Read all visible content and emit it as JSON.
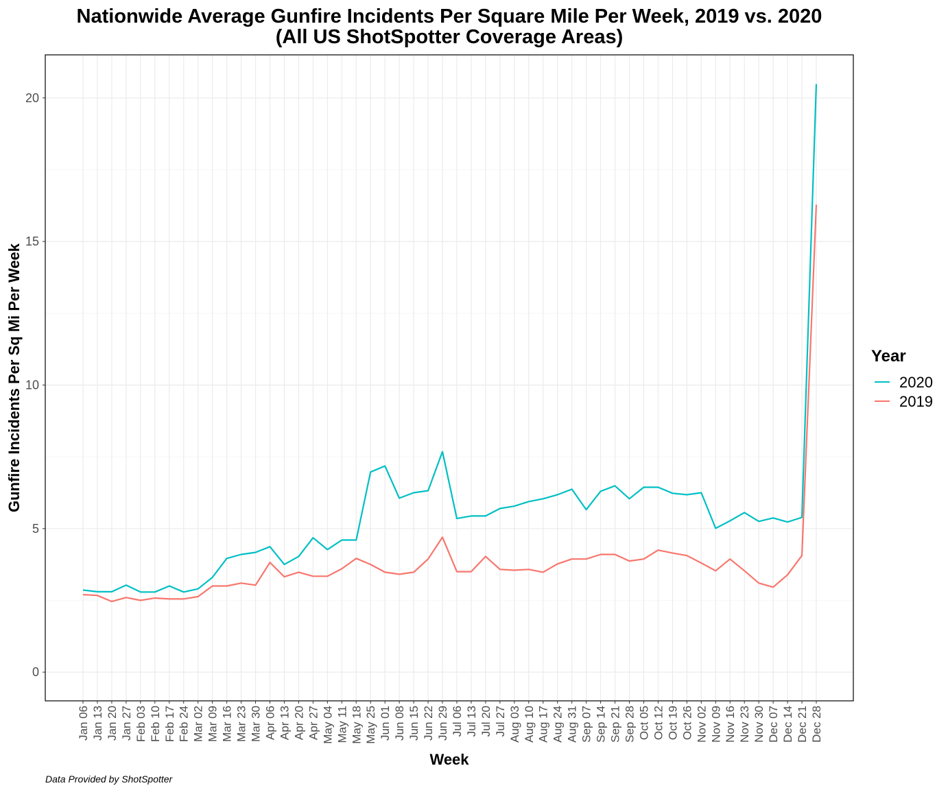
{
  "chart_data": {
    "type": "line",
    "title": "Nationwide Average Gunfire Incidents Per Square Mile Per Week, 2019 vs. 2020",
    "subtitle": "(All US ShotSpotter Coverage Areas)",
    "xlabel": "Week",
    "ylabel": "Gunfire Incidents Per Sq Mi Per Week",
    "caption": "Data Provided by ShotSpotter",
    "ylim": [
      -1,
      21.5
    ],
    "yticks": [
      "0",
      "5",
      "10",
      "15",
      "20"
    ],
    "grid": true,
    "legend": {
      "title": "Year",
      "position": "right"
    },
    "categories": [
      "Jan 06",
      "Jan 13",
      "Jan 20",
      "Jan 27",
      "Feb 03",
      "Feb 10",
      "Feb 17",
      "Feb 24",
      "Mar 02",
      "Mar 09",
      "Mar 16",
      "Mar 23",
      "Mar 30",
      "Apr 06",
      "Apr 13",
      "Apr 20",
      "Apr 27",
      "May 04",
      "May 11",
      "May 18",
      "May 25",
      "Jun 01",
      "Jun 08",
      "Jun 15",
      "Jun 22",
      "Jun 29",
      "Jul 06",
      "Jul 13",
      "Jul 20",
      "Jul 27",
      "Aug 03",
      "Aug 10",
      "Aug 17",
      "Aug 24",
      "Aug 31",
      "Sep 07",
      "Sep 14",
      "Sep 21",
      "Sep 28",
      "Oct 05",
      "Oct 12",
      "Oct 19",
      "Oct 26",
      "Nov 02",
      "Nov 09",
      "Nov 16",
      "Nov 23",
      "Nov 30",
      "Dec 07",
      "Dec 14",
      "Dec 21",
      "Dec 28"
    ],
    "series": [
      {
        "name": "2020",
        "color": "#00bfc4",
        "values": [
          2.86,
          2.8,
          2.8,
          3.03,
          2.79,
          2.79,
          3.0,
          2.79,
          2.9,
          3.3,
          3.96,
          4.1,
          4.17,
          4.37,
          3.75,
          4.03,
          4.68,
          4.27,
          4.6,
          4.6,
          6.97,
          7.18,
          6.06,
          6.25,
          6.32,
          7.68,
          5.35,
          5.44,
          5.44,
          5.7,
          5.78,
          5.94,
          6.04,
          6.18,
          6.37,
          5.66,
          6.3,
          6.49,
          6.04,
          6.44,
          6.44,
          6.23,
          6.18,
          6.25,
          5.01,
          5.27,
          5.56,
          5.25,
          5.37,
          5.23,
          5.39,
          20.48
        ]
      },
      {
        "name": "2019",
        "color": "#f8766d",
        "values": [
          2.7,
          2.67,
          2.46,
          2.6,
          2.5,
          2.58,
          2.55,
          2.55,
          2.63,
          3.0,
          3.0,
          3.1,
          3.03,
          3.82,
          3.32,
          3.48,
          3.34,
          3.34,
          3.6,
          3.96,
          3.75,
          3.48,
          3.41,
          3.48,
          3.94,
          4.7,
          3.5,
          3.5,
          4.03,
          3.58,
          3.55,
          3.58,
          3.48,
          3.77,
          3.94,
          3.94,
          4.1,
          4.1,
          3.87,
          3.94,
          4.25,
          4.15,
          4.06,
          3.8,
          3.53,
          3.94,
          3.53,
          3.1,
          2.96,
          3.39,
          4.06,
          16.28
        ]
      }
    ]
  }
}
